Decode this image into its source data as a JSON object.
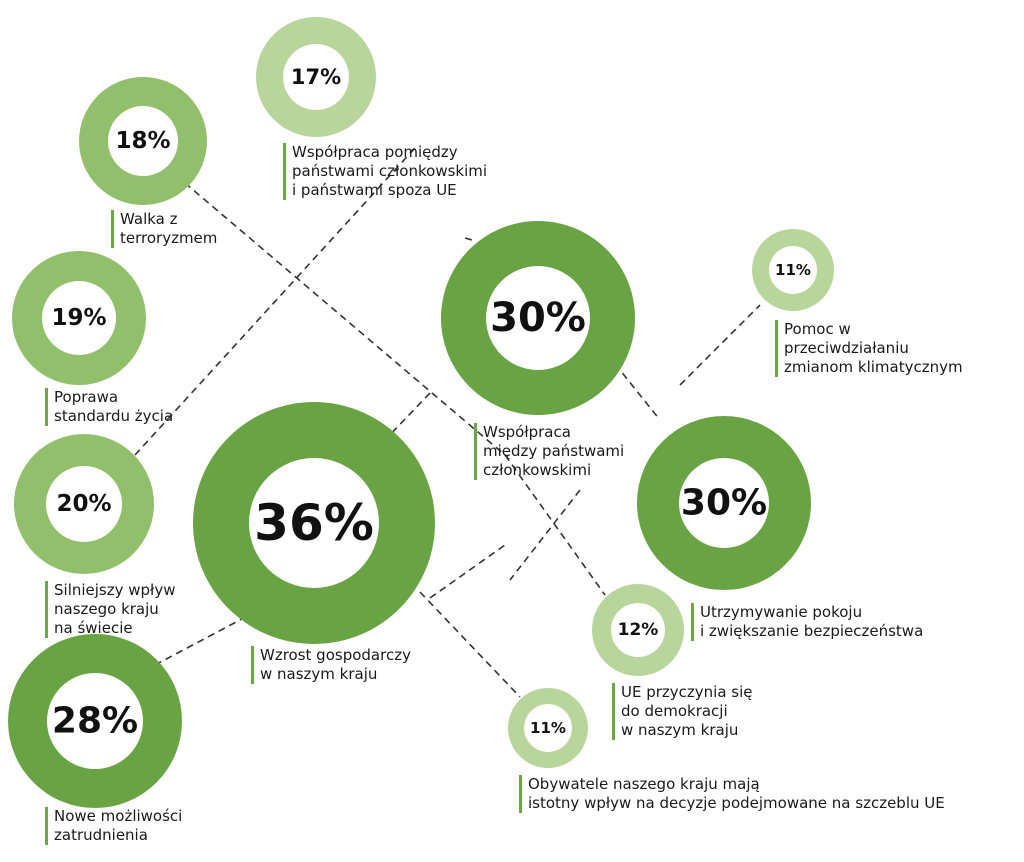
{
  "colors": {
    "dark": "#6aa343",
    "medium": "#92bf6c",
    "light": "#b8d69c",
    "connector": "#333333"
  },
  "items": [
    {
      "id": "growth",
      "percent": 36,
      "value": "36%",
      "tone": "dark",
      "lines": [
        "Wzrost gospodarczy",
        "w naszym kraju"
      ]
    },
    {
      "id": "cooperation",
      "percent": 30,
      "value": "30%",
      "tone": "dark",
      "lines": [
        "Współpraca",
        "między państwami",
        "członkowskimi"
      ]
    },
    {
      "id": "peace",
      "percent": 30,
      "value": "30%",
      "tone": "dark",
      "lines": [
        "Utrzymywanie pokoju",
        "i zwiększanie bezpieczeństwa"
      ]
    },
    {
      "id": "jobs",
      "percent": 28,
      "value": "28%",
      "tone": "dark",
      "lines": [
        "Nowe możliwości",
        "zatrudnienia"
      ]
    },
    {
      "id": "influence",
      "percent": 20,
      "value": "20%",
      "tone": "medium",
      "lines": [
        "Silniejszy wpływ",
        "naszego kraju",
        "na świecie"
      ]
    },
    {
      "id": "living",
      "percent": 19,
      "value": "19%",
      "tone": "medium",
      "lines": [
        "Poprawa",
        "standardu życia"
      ]
    },
    {
      "id": "terror",
      "percent": 18,
      "value": "18%",
      "tone": "medium",
      "lines": [
        "Walka z",
        "terroryzmem"
      ]
    },
    {
      "id": "nonEU",
      "percent": 17,
      "value": "17%",
      "tone": "light",
      "lines": [
        "Współpraca pomiędzy",
        "państwami członkowskimi",
        "i państwami spoza UE"
      ]
    },
    {
      "id": "democracy",
      "percent": 12,
      "value": "12%",
      "tone": "light",
      "lines": [
        "UE przyczynia się",
        "do demokracji",
        "w naszym kraju"
      ]
    },
    {
      "id": "climate",
      "percent": 11,
      "value": "11%",
      "tone": "light",
      "lines": [
        "Pomoc w",
        "przeciwdziałaniu",
        "zmianom klimatycznym"
      ]
    },
    {
      "id": "citizens",
      "percent": 11,
      "value": "11%",
      "tone": "light",
      "lines": [
        "Obywatele naszego kraju mają",
        "istotny wpływ na decyzje podejmowane na szczeblu UE"
      ]
    }
  ]
}
